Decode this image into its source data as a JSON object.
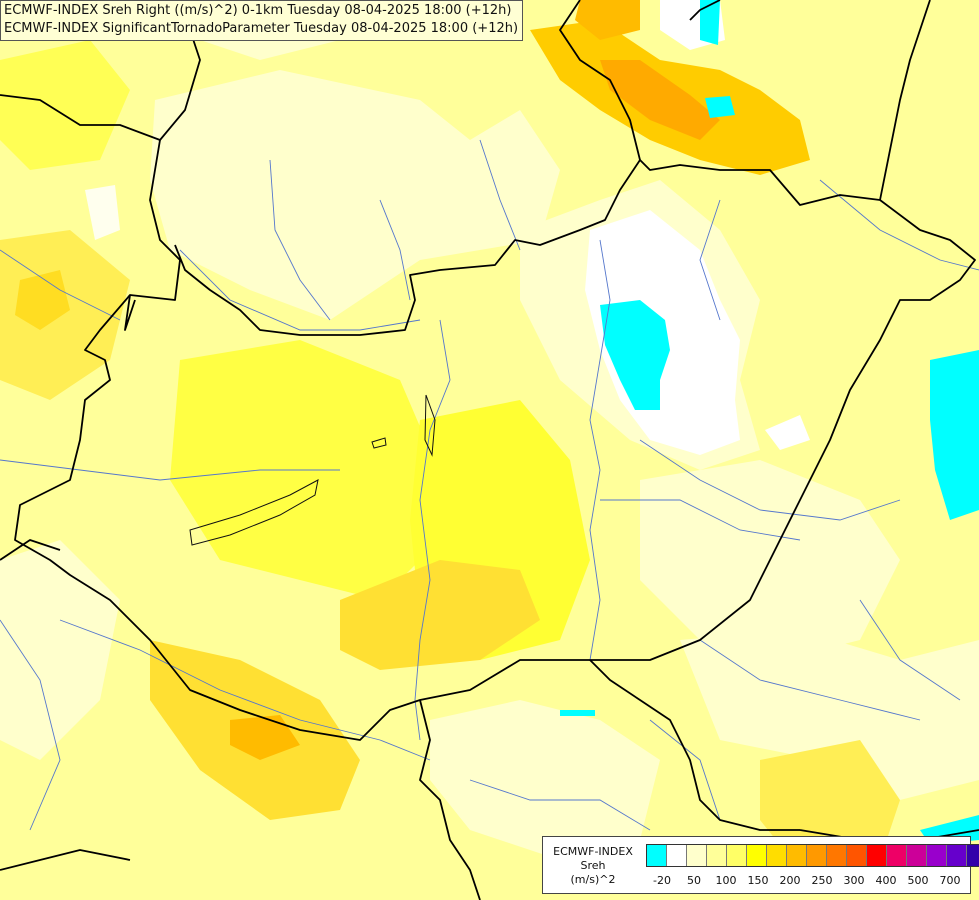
{
  "header": {
    "line1": "ECMWF-INDEX Sreh Right ((m/s)^2) 0-1km Tuesday 08-04-2025 18:00 (+12h)",
    "line2": "ECMWF-INDEX SignificantTornadoParameter Tuesday 08-04-2025 18:00 (+12h)"
  },
  "legend": {
    "title1": "ECMWF-INDEX",
    "title2": "Sreh",
    "unit": "(m/s)^2",
    "colors": [
      "#00ffff",
      "#ffffff",
      "#ffffcc",
      "#ffff99",
      "#ffff66",
      "#ffff00",
      "#ffdd00",
      "#ffbb00",
      "#ff9900",
      "#ff7700",
      "#ff5500",
      "#ff0000",
      "#ee0066",
      "#cc0099",
      "#9900cc",
      "#6600cc",
      "#3300aa",
      "#000080"
    ],
    "ticks": [
      "-20",
      "50",
      "100",
      "150",
      "200",
      "250",
      "300",
      "400",
      "500",
      "700"
    ]
  }
}
